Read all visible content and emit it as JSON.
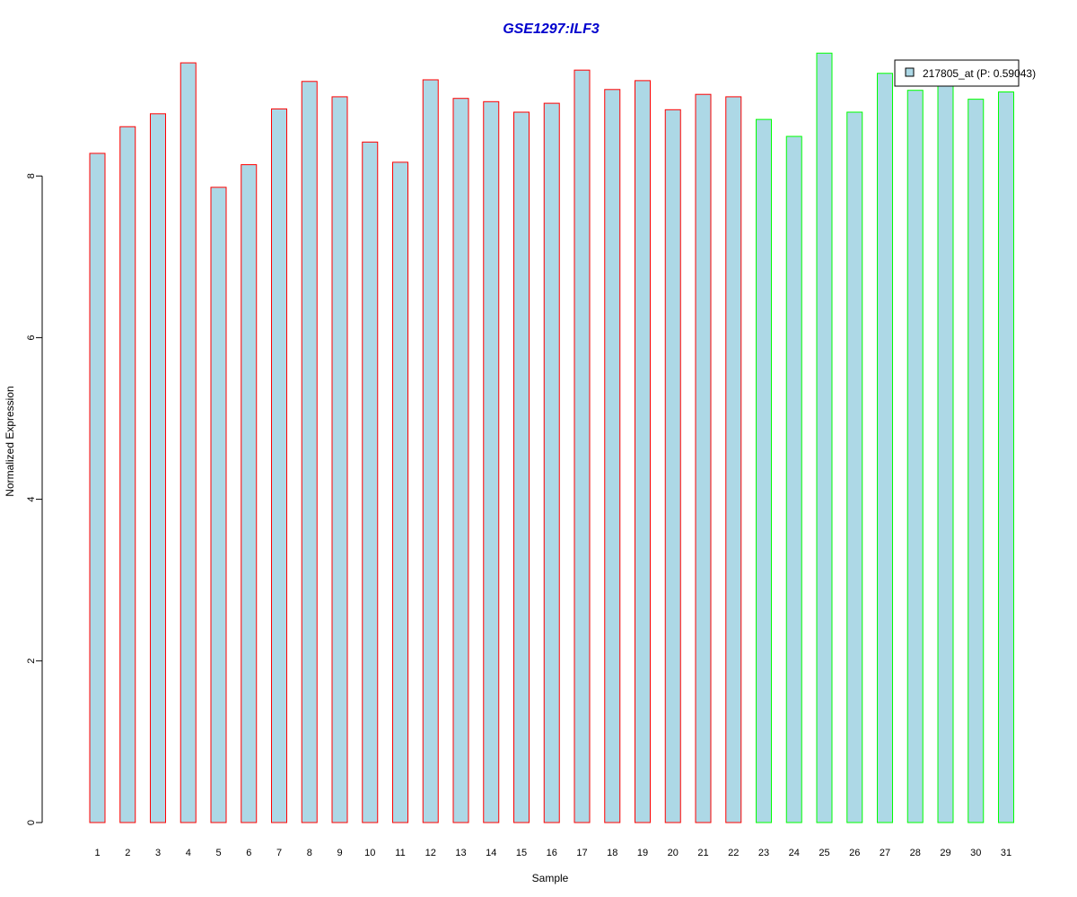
{
  "chart_data": {
    "type": "bar",
    "title": "GSE1297:ILF3",
    "xlabel": "Sample",
    "ylabel": "Normalized Expression",
    "ylim": [
      0,
      9.5
    ],
    "yticks": [
      "0",
      "2",
      "4",
      "6",
      "8"
    ],
    "categories": [
      "1",
      "2",
      "3",
      "4",
      "5",
      "6",
      "7",
      "8",
      "9",
      "10",
      "11",
      "12",
      "13",
      "14",
      "15",
      "16",
      "17",
      "18",
      "19",
      "20",
      "21",
      "22",
      "23",
      "24",
      "25",
      "26",
      "27",
      "28",
      "29",
      "30",
      "31"
    ],
    "series": [
      {
        "name": "217805_at (P: 0.59043)",
        "values": [
          8.28,
          8.61,
          8.77,
          9.4,
          7.86,
          8.14,
          8.83,
          9.17,
          8.98,
          8.42,
          8.17,
          9.19,
          8.96,
          8.92,
          8.79,
          8.9,
          9.31,
          9.07,
          9.18,
          8.82,
          9.01,
          8.98,
          8.7,
          8.49,
          9.52,
          8.79,
          9.27,
          9.06,
          9.18,
          8.95,
          9.04
        ]
      }
    ],
    "group_of_bar": [
      1,
      1,
      1,
      1,
      1,
      1,
      1,
      1,
      1,
      1,
      1,
      1,
      1,
      1,
      1,
      1,
      1,
      1,
      1,
      1,
      1,
      1,
      2,
      2,
      2,
      2,
      2,
      2,
      2,
      2,
      2
    ],
    "legend_position": "top-right",
    "grid": false
  },
  "colors": {
    "bar_fill": "#add8e6",
    "group1_border": "#ff0000",
    "group2_border": "#00ff00",
    "title": "#0000cd",
    "axis": "#000000"
  }
}
